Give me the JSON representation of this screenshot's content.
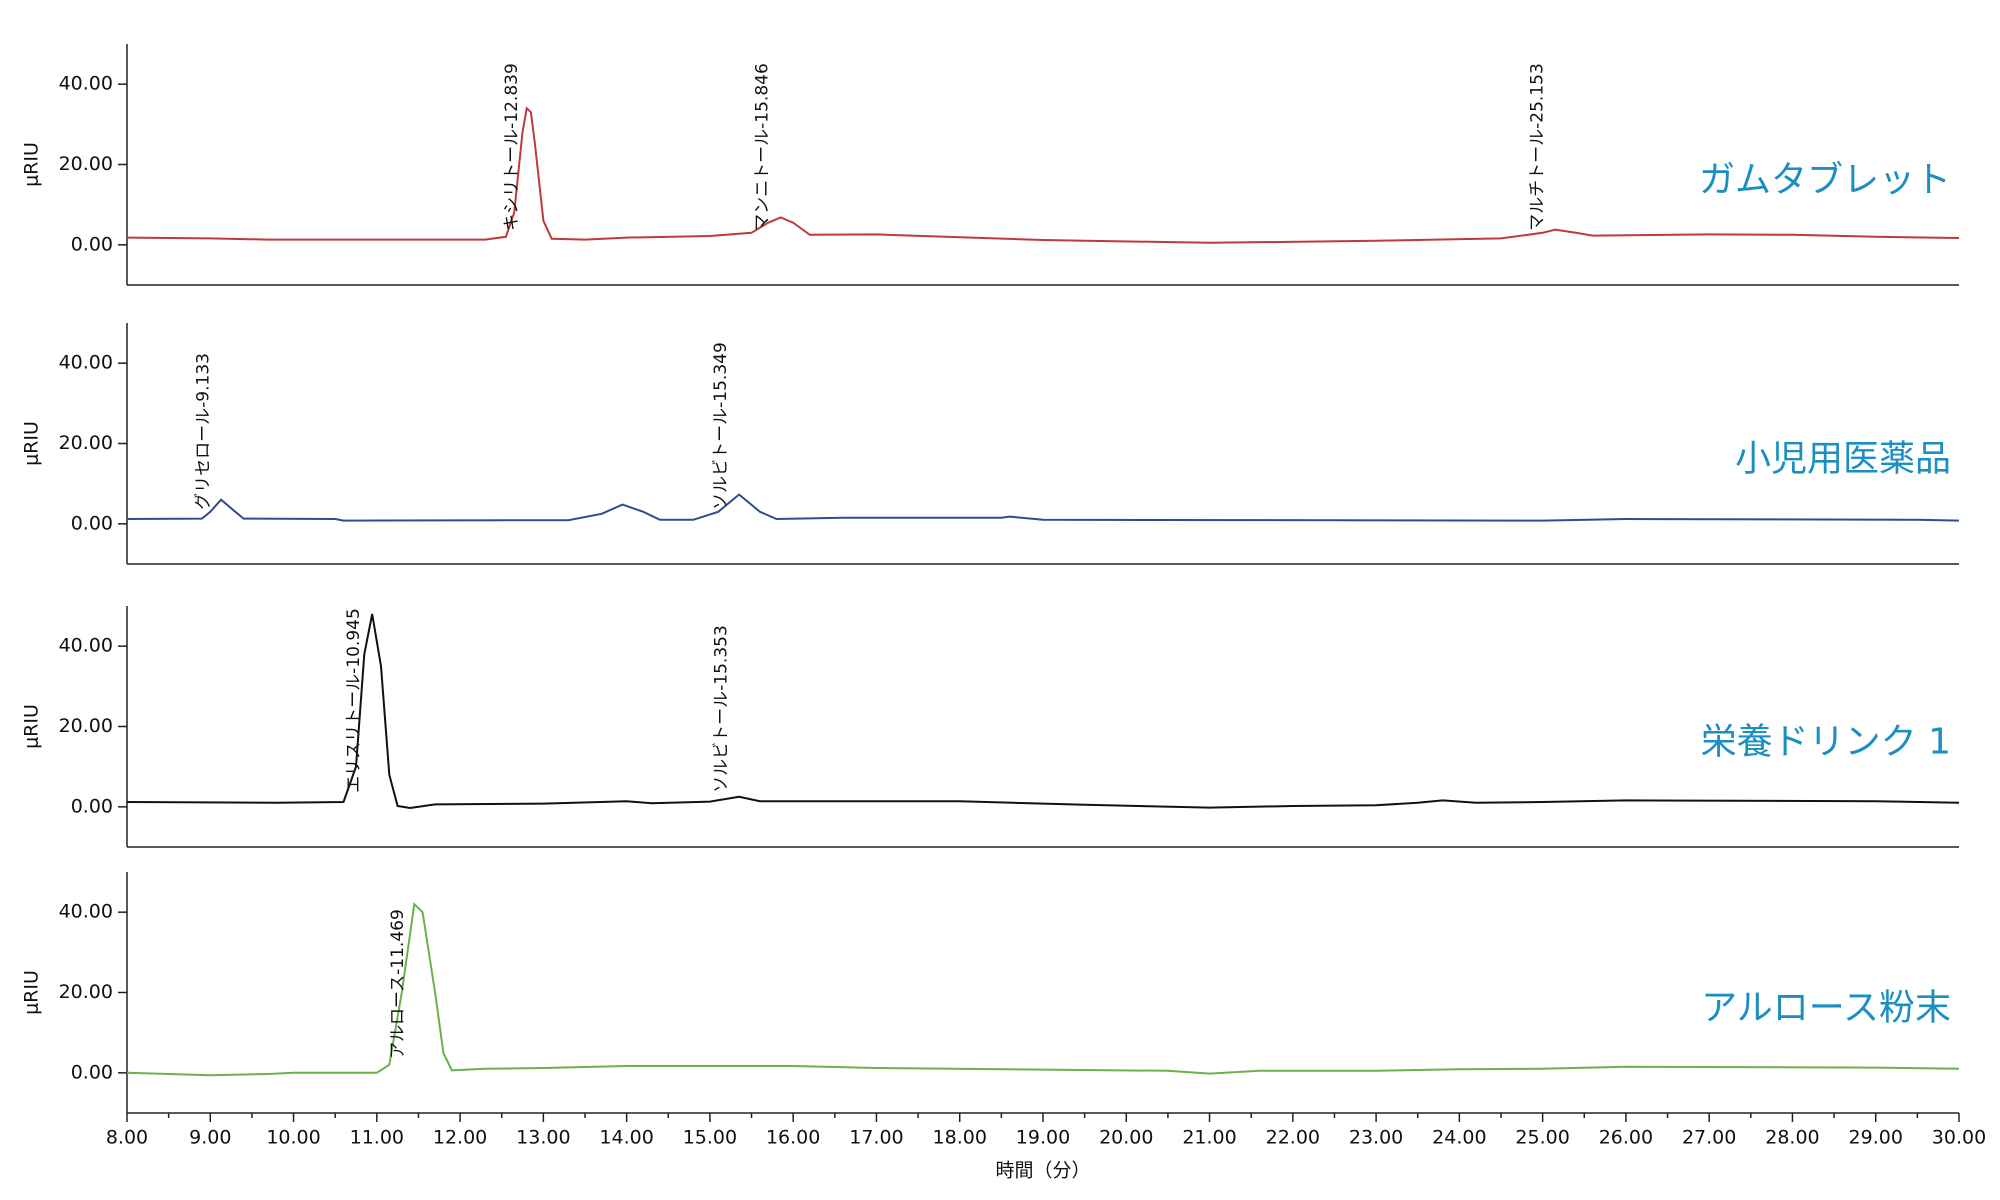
{
  "chart_data": [
    {
      "type": "line",
      "label": "ガムタブレット",
      "ylabel": "μRIU",
      "color": "#c0393b",
      "xlim": [
        8,
        30
      ],
      "ylim": [
        -10,
        50
      ],
      "yticks": [
        {
          "value": 0,
          "label": "0.00"
        },
        {
          "value": 20,
          "label": "20.00"
        },
        {
          "value": 40,
          "label": "40.00"
        }
      ],
      "x": [
        8,
        9,
        9.7,
        12.3,
        12.55,
        12.65,
        12.75,
        12.8,
        12.85,
        12.9,
        13.0,
        13.1,
        13.5,
        14.0,
        15.0,
        15.5,
        15.7,
        15.85,
        16.0,
        16.2,
        17,
        19,
        21,
        23,
        24.5,
        25.0,
        25.15,
        25.4,
        25.6,
        27,
        28,
        29,
        30
      ],
      "values": [
        1.8,
        1.6,
        1.3,
        1.3,
        2,
        8,
        28,
        34,
        33,
        25,
        6,
        1.5,
        1.3,
        1.8,
        2.2,
        3,
        5.5,
        6.8,
        5.5,
        2.5,
        2.6,
        1.2,
        0.5,
        1,
        1.6,
        3,
        3.8,
        3,
        2.3,
        2.6,
        2.5,
        2,
        1.7
      ],
      "annotations": [
        {
          "x": 12.839,
          "label": "キシリトール-12.839"
        },
        {
          "x": 15.846,
          "label": "マンニトール-15.846"
        },
        {
          "x": 25.153,
          "label": "マルチトール-25.153"
        }
      ]
    },
    {
      "type": "line",
      "label": "小児用医薬品",
      "ylabel": "μRIU",
      "color": "#2e4d8e",
      "xlim": [
        8,
        30
      ],
      "ylim": [
        -10,
        50
      ],
      "yticks": [
        {
          "value": 0,
          "label": "0.00"
        },
        {
          "value": 20,
          "label": "20.00"
        },
        {
          "value": 40,
          "label": "40.00"
        }
      ],
      "x": [
        8,
        8.9,
        9.0,
        9.13,
        9.3,
        9.4,
        10.5,
        10.6,
        13.3,
        13.7,
        13.95,
        14.2,
        14.4,
        14.8,
        15.1,
        15.35,
        15.6,
        15.8,
        16.6,
        18.5,
        18.6,
        19,
        25,
        26,
        29.5,
        30
      ],
      "values": [
        1.2,
        1.3,
        3,
        6,
        3,
        1.3,
        1.2,
        0.8,
        0.9,
        2.5,
        4.8,
        3,
        1,
        1,
        3,
        7.3,
        3,
        1.2,
        1.5,
        1.5,
        1.8,
        1,
        0.8,
        1.2,
        1,
        0.8
      ],
      "annotations": [
        {
          "x": 9.133,
          "label": "グリセロール-9.133"
        },
        {
          "x": 15.349,
          "label": "ソルビトール-15.349"
        }
      ]
    },
    {
      "type": "line",
      "label": "栄養ドリンク 1",
      "ylabel": "μRIU",
      "color": "#111111",
      "xlim": [
        8,
        30
      ],
      "ylim": [
        -10,
        50
      ],
      "yticks": [
        {
          "value": 0,
          "label": "0.00"
        },
        {
          "value": 20,
          "label": "20.00"
        },
        {
          "value": 40,
          "label": "40.00"
        }
      ],
      "x": [
        8,
        9.8,
        10.6,
        10.75,
        10.85,
        10.945,
        11.05,
        11.15,
        11.25,
        11.4,
        11.7,
        13,
        14,
        14.3,
        15.0,
        15.35,
        15.6,
        18,
        19.5,
        21,
        22,
        23,
        23.5,
        23.8,
        24.2,
        25,
        26,
        29,
        30
      ],
      "values": [
        1.2,
        1,
        1.2,
        10,
        38,
        48,
        35,
        8,
        0.2,
        -0.3,
        0.6,
        0.8,
        1.4,
        0.9,
        1.3,
        2.5,
        1.4,
        1.4,
        0.5,
        -0.2,
        0.2,
        0.4,
        1,
        1.6,
        1,
        1.2,
        1.6,
        1.4,
        1
      ],
      "annotations": [
        {
          "x": 10.945,
          "label": "エリスリトール-10.945"
        },
        {
          "x": 15.353,
          "label": "ソルビトール-15.353"
        }
      ]
    },
    {
      "type": "line",
      "label": "アルロース粉末",
      "ylabel": "μRIU",
      "color": "#6ab04c",
      "xlim": [
        8,
        30
      ],
      "ylim": [
        -10,
        50
      ],
      "yticks": [
        {
          "value": 0,
          "label": "0.00"
        },
        {
          "value": 20,
          "label": "20.00"
        },
        {
          "value": 40,
          "label": "40.00"
        }
      ],
      "xticks": [
        {
          "value": 8,
          "label": "8.00"
        },
        {
          "value": 9,
          "label": "9.00"
        },
        {
          "value": 10,
          "label": "10.00"
        },
        {
          "value": 11,
          "label": "11.00"
        },
        {
          "value": 12,
          "label": "12.00"
        },
        {
          "value": 13,
          "label": "13.00"
        },
        {
          "value": 14,
          "label": "14.00"
        },
        {
          "value": 15,
          "label": "15.00"
        },
        {
          "value": 16,
          "label": "16.00"
        },
        {
          "value": 17,
          "label": "17.00"
        },
        {
          "value": 18,
          "label": "18.00"
        },
        {
          "value": 19,
          "label": "19.00"
        },
        {
          "value": 20,
          "label": "20.00"
        },
        {
          "value": 21,
          "label": "21.00"
        },
        {
          "value": 22,
          "label": "22.00"
        },
        {
          "value": 23,
          "label": "23.00"
        },
        {
          "value": 24,
          "label": "24.00"
        },
        {
          "value": 25,
          "label": "25.00"
        },
        {
          "value": 26,
          "label": "26.00"
        },
        {
          "value": 27,
          "label": "27.00"
        },
        {
          "value": 28,
          "label": "28.00"
        },
        {
          "value": 29,
          "label": "29.00"
        },
        {
          "value": 30,
          "label": "30.00"
        }
      ],
      "xlabel": "時間（分）",
      "x": [
        8,
        9,
        9.7,
        10,
        11,
        11.15,
        11.3,
        11.45,
        11.55,
        11.7,
        11.8,
        11.9,
        12.3,
        13,
        14,
        16,
        17,
        19,
        20.5,
        21,
        21.6,
        23,
        24,
        25,
        26,
        29,
        30
      ],
      "values": [
        0,
        -0.6,
        -0.3,
        0,
        0,
        2,
        20,
        42,
        40,
        20,
        5,
        0.6,
        1,
        1.2,
        1.7,
        1.7,
        1.2,
        0.8,
        0.5,
        -0.2,
        0.5,
        0.5,
        0.9,
        1,
        1.5,
        1.3,
        1
      ],
      "annotations": [
        {
          "x": 11.469,
          "label": "アルロース-11.469"
        }
      ]
    }
  ]
}
